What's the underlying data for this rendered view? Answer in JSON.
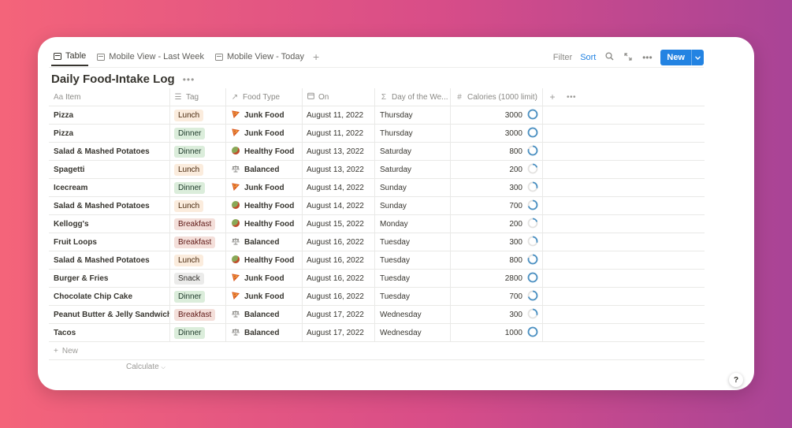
{
  "tabs": [
    {
      "label": "Table",
      "active": true
    },
    {
      "label": "Mobile View - Last Week",
      "active": false
    },
    {
      "label": "Mobile View - Today",
      "active": false
    }
  ],
  "toolbar": {
    "filter_label": "Filter",
    "sort_label": "Sort",
    "new_label": "New"
  },
  "page": {
    "title": "Daily Food-Intake Log"
  },
  "columns": {
    "item": "Item",
    "tag": "Tag",
    "food_type": "Food Type",
    "on": "On",
    "day": "Day of the We...",
    "calories": "Calories (1000 limit)"
  },
  "colors": {
    "accent": "#2383e2",
    "ring": "#4a90c2",
    "ring_track": "#e3e2e0",
    "junk_icon": "#e46a1f"
  },
  "rows": [
    {
      "item": "Pizza",
      "tag": "Lunch",
      "tag_style": "lunch",
      "food_type": "Junk Food",
      "food_icon": "pizza-icon",
      "on": "August 11, 2022",
      "day": "Thursday",
      "calories": "3000",
      "progress": 1.0
    },
    {
      "item": "Pizza",
      "tag": "Dinner",
      "tag_style": "dinner",
      "food_type": "Junk Food",
      "food_icon": "pizza-icon",
      "on": "August 11, 2022",
      "day": "Thursday",
      "calories": "3000",
      "progress": 1.0
    },
    {
      "item": "Salad & Mashed Potatoes",
      "tag": "Dinner",
      "tag_style": "dinner",
      "food_type": "Healthy Food",
      "food_icon": "salad-icon",
      "on": "August 13, 2022",
      "day": "Saturday",
      "calories": "800",
      "progress": 0.8
    },
    {
      "item": "Spagetti",
      "tag": "Lunch",
      "tag_style": "lunch",
      "food_type": "Balanced",
      "food_icon": "scale-icon",
      "on": "August 13, 2022",
      "day": "Saturday",
      "calories": "200",
      "progress": 0.2
    },
    {
      "item": "Icecream",
      "tag": "Dinner",
      "tag_style": "dinner",
      "food_type": "Junk Food",
      "food_icon": "pizza-icon",
      "on": "August 14, 2022",
      "day": "Sunday",
      "calories": "300",
      "progress": 0.3
    },
    {
      "item": "Salad & Mashed Potatoes",
      "tag": "Lunch",
      "tag_style": "lunch",
      "food_type": "Healthy Food",
      "food_icon": "salad-icon",
      "on": "August 14, 2022",
      "day": "Sunday",
      "calories": "700",
      "progress": 0.7
    },
    {
      "item": "Kellogg's",
      "tag": "Breakfast",
      "tag_style": "breakfast",
      "food_type": "Healthy Food",
      "food_icon": "salad-icon",
      "on": "August 15, 2022",
      "day": "Monday",
      "calories": "200",
      "progress": 0.2
    },
    {
      "item": "Fruit Loops",
      "tag": "Breakfast",
      "tag_style": "breakfast",
      "food_type": "Balanced",
      "food_icon": "scale-icon",
      "on": "August 16, 2022",
      "day": "Tuesday",
      "calories": "300",
      "progress": 0.3
    },
    {
      "item": "Salad & Mashed Potatoes",
      "tag": "Lunch",
      "tag_style": "lunch",
      "food_type": "Healthy Food",
      "food_icon": "salad-icon",
      "on": "August 16, 2022",
      "day": "Tuesday",
      "calories": "800",
      "progress": 0.8
    },
    {
      "item": "Burger & Fries",
      "tag": "Snack",
      "tag_style": "snack",
      "food_type": "Junk Food",
      "food_icon": "pizza-icon",
      "on": "August 16, 2022",
      "day": "Tuesday",
      "calories": "2800",
      "progress": 1.0
    },
    {
      "item": "Chocolate Chip Cake",
      "tag": "Dinner",
      "tag_style": "dinner",
      "food_type": "Junk Food",
      "food_icon": "pizza-icon",
      "on": "August 16, 2022",
      "day": "Tuesday",
      "calories": "700",
      "progress": 0.7
    },
    {
      "item": "Peanut Butter & Jelly Sandwich",
      "tag": "Breakfast",
      "tag_style": "breakfast",
      "food_type": "Balanced",
      "food_icon": "scale-icon",
      "on": "August 17, 2022",
      "day": "Wednesday",
      "calories": "300",
      "progress": 0.3
    },
    {
      "item": "Tacos",
      "tag": "Dinner",
      "tag_style": "dinner",
      "food_type": "Balanced",
      "food_icon": "scale-icon",
      "on": "August 17, 2022",
      "day": "Wednesday",
      "calories": "1000",
      "progress": 1.0
    }
  ],
  "footer": {
    "new_row_label": "New",
    "calculate_label": "Calculate"
  },
  "help_label": "?"
}
